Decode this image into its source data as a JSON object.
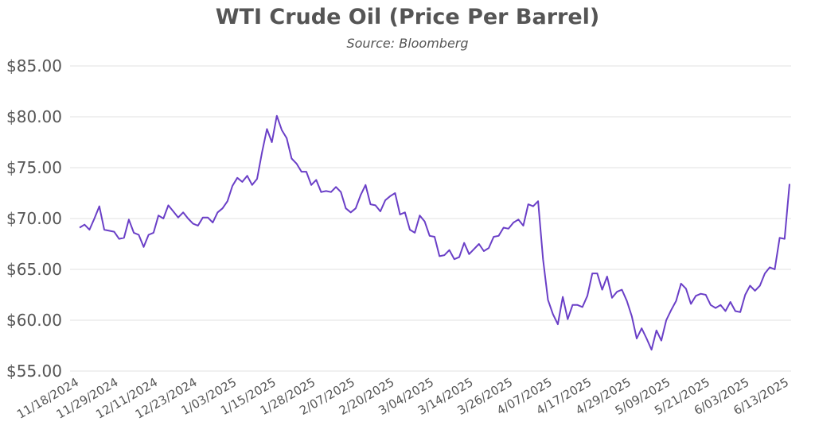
{
  "chart_data": {
    "type": "line",
    "title": "WTI Crude Oil (Price Per Barrel)",
    "subtitle": "Source: Bloomberg",
    "xlabel": "",
    "ylabel": "",
    "ylim": [
      55,
      85
    ],
    "y_ticks": [
      "$55.00",
      "$60.00",
      "$65.00",
      "$70.00",
      "$75.00",
      "$80.00",
      "$85.00"
    ],
    "x_tick_labels": [
      "11/18/2024",
      "11/29/2024",
      "12/11/2024",
      "12/23/2024",
      "1/03/2025",
      "1/15/2025",
      "1/28/2025",
      "2/07/2025",
      "2/20/2025",
      "3/04/2025",
      "3/14/2025",
      "3/26/2025",
      "4/07/2025",
      "4/17/2025",
      "4/29/2025",
      "5/09/2025",
      "5/21/2025",
      "6/03/2025",
      "6/13/2025"
    ],
    "grid": true,
    "line_color": "#6a3fc7",
    "series": [
      {
        "values": [
          69.1,
          69.4,
          68.9,
          70.0,
          71.2,
          68.9,
          68.8,
          68.7,
          68.0,
          68.1,
          69.9,
          68.6,
          68.4,
          67.2,
          68.4,
          68.6,
          70.3,
          70.0,
          71.3,
          70.7,
          70.1,
          70.6,
          70.0,
          69.5,
          69.3,
          70.1,
          70.1,
          69.6,
          70.6,
          71.0,
          71.7,
          73.2,
          74.0,
          73.6,
          74.2,
          73.3,
          73.9,
          76.5,
          78.8,
          77.5,
          80.1,
          78.7,
          77.9,
          75.9,
          75.4,
          74.6,
          74.6,
          73.3,
          73.8,
          72.6,
          72.7,
          72.6,
          73.1,
          72.6,
          71.0,
          70.6,
          71.0,
          72.3,
          73.3,
          71.4,
          71.3,
          70.7,
          71.8,
          72.2,
          72.5,
          70.4,
          70.6,
          68.9,
          68.6,
          70.3,
          69.7,
          68.3,
          68.2,
          66.3,
          66.4,
          66.9,
          66.0,
          66.2,
          67.6,
          66.5,
          67.0,
          67.5,
          66.8,
          67.1,
          68.2,
          68.3,
          69.1,
          69.0,
          69.6,
          69.9,
          69.3,
          71.4,
          71.2,
          71.7,
          66.0,
          62.0,
          60.6,
          59.6,
          62.3,
          60.1,
          61.5,
          61.5,
          61.3,
          62.4,
          64.6,
          64.6,
          63.0,
          64.3,
          62.2,
          62.8,
          63.0,
          61.9,
          60.4,
          58.2,
          59.2,
          58.2,
          57.1,
          59.0,
          58.0,
          60.0,
          61.0,
          61.9,
          63.6,
          63.1,
          61.6,
          62.4,
          62.6,
          62.5,
          61.5,
          61.2,
          61.5,
          60.9,
          61.8,
          60.9,
          60.8,
          62.5,
          63.4,
          62.9,
          63.4,
          64.6,
          65.2,
          65.0,
          68.1,
          68.0,
          73.4
        ]
      }
    ]
  }
}
